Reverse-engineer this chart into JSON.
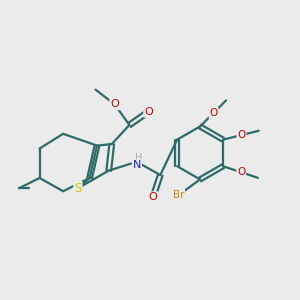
{
  "background_color": "#ebebeb",
  "bond_color": "#2d6b6b",
  "atom_colors": {
    "S": "#cccc00",
    "N": "#2222cc",
    "O": "#cc0000",
    "Br": "#cc8800",
    "H": "#aaaaaa",
    "C": "#2d6b6b"
  },
  "figsize": [
    3.0,
    3.0
  ],
  "dpi": 100
}
